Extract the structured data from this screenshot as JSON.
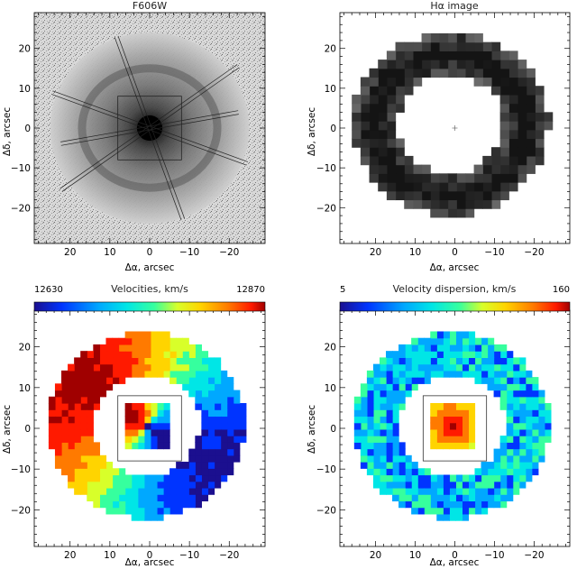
{
  "figure": {
    "panels": [
      {
        "id": "f606w",
        "title": "F606W",
        "xlabel": "Δα, arcsec",
        "ylabel": "Δδ, arcsec",
        "x_ticks": [
          "20",
          "10",
          "0",
          "−10",
          "−20"
        ],
        "y_ticks": [
          "20",
          "10",
          "0",
          "−10",
          "−20"
        ],
        "colorbar": null
      },
      {
        "id": "halpha",
        "title": "Hα image",
        "xlabel": "Δα, arcsec",
        "ylabel": "Δδ, arcsec",
        "x_ticks": [
          "20",
          "10",
          "0",
          "−10",
          "−20"
        ],
        "y_ticks": [
          "20",
          "10",
          "0",
          "−10",
          "−20"
        ],
        "colorbar": null
      },
      {
        "id": "velocity",
        "title": "Velocities, km/s",
        "xlabel": "Δα, arcsec",
        "ylabel": "Δδ, arcsec",
        "x_ticks": [
          "20",
          "10",
          "0",
          "−10",
          "−20"
        ],
        "y_ticks": [
          "20",
          "10",
          "0",
          "−10",
          "−20"
        ],
        "colorbar": {
          "min_label": "12630",
          "max_label": "12870",
          "colormap": "rainbow"
        }
      },
      {
        "id": "dispersion",
        "title": "Velocity dispersion, km/s",
        "xlabel": "Δα, arcsec",
        "ylabel": "Δδ, arcsec",
        "x_ticks": [
          "20",
          "10",
          "0",
          "−10",
          "−20"
        ],
        "y_ticks": [
          "20",
          "10",
          "0",
          "−10",
          "−20"
        ],
        "colorbar": {
          "min_label": "5",
          "max_label": "160",
          "colormap": "rainbow"
        }
      }
    ],
    "axis_range_arcsec": [
      29,
      -29
    ],
    "ring_radii_arcsec": {
      "inner": 13,
      "outer": 24
    },
    "central_box_arcsec": 8,
    "colors": {
      "rainbow": [
        "#1b0f8f",
        "#0034ff",
        "#00a8ff",
        "#00e6e6",
        "#36ff9e",
        "#d8ff2a",
        "#ffd400",
        "#ff7a00",
        "#ff1a00",
        "#a00000"
      ]
    }
  }
}
